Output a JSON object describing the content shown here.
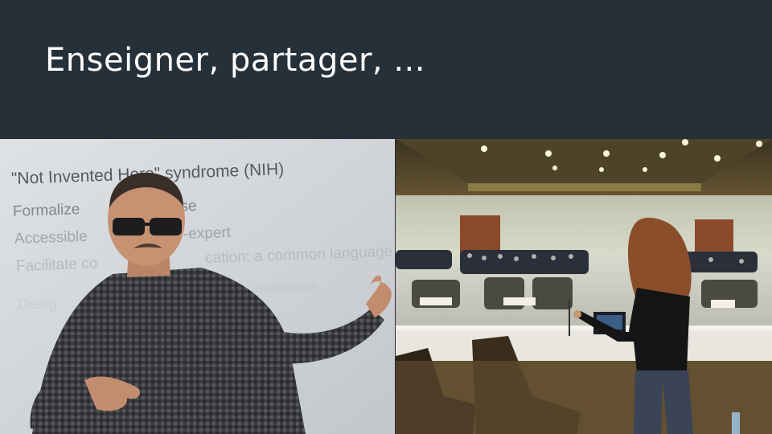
{
  "slide": {
    "title": "Enseigner, partager, ..."
  },
  "left_photo": {
    "projected_text": [
      "\"Not Invented Here\" syndrome (NIH)",
      "Formalize",
      "tise",
      "Accessible",
      "-expert",
      "Facilitate co",
      "cation: a common language",
      "Desig",
      "intenance"
    ]
  },
  "colors": {
    "background": "#263039",
    "title": "#ffffff"
  }
}
